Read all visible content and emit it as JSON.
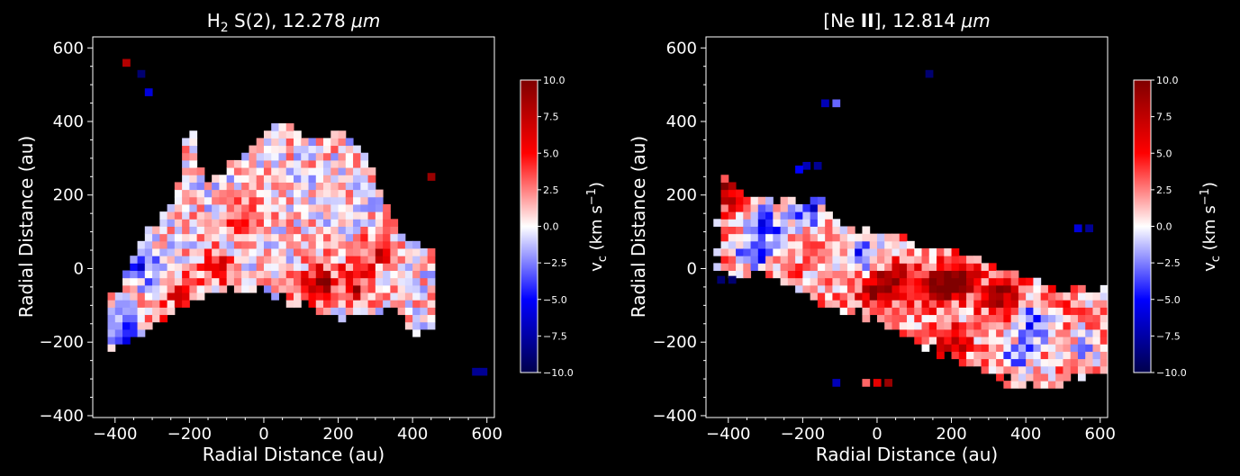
{
  "chart_data": [
    {
      "type": "heatmap",
      "title_main": "H",
      "title_sub": "2",
      "title_rest": " S(2), 12.278 ",
      "title_unit": "μm",
      "xlabel": "Radial Distance (au)",
      "ylabel": "Radial Distance (au)",
      "xlim": [
        -460,
        620
      ],
      "ylim": [
        -405,
        630
      ],
      "xticks": [
        "−400",
        "−200",
        "0",
        "200",
        "400",
        "600"
      ],
      "xtick_values": [
        -400,
        -200,
        0,
        200,
        400,
        600
      ],
      "yticks": [
        "−400",
        "−200",
        "0",
        "200",
        "400",
        "600"
      ],
      "ytick_values": [
        -400,
        -200,
        0,
        200,
        400,
        600
      ],
      "grid": false,
      "cell_size_au": 20,
      "colorbar": {
        "label": "v",
        "label_sub": "c",
        "label_rest": " (km s",
        "label_sup": "−1",
        "label_end": ")",
        "vmin": -10,
        "vmax": 10,
        "ticks": [
          "10.0",
          "7.5",
          "5.0",
          "2.5",
          "0.0",
          "−2.5",
          "−5.0",
          "−7.5",
          "−10.0"
        ],
        "tick_values": [
          10,
          7.5,
          5,
          2.5,
          0,
          -2.5,
          -5,
          -7.5,
          -10
        ],
        "colormap": "seismic"
      },
      "region_profile": [
        [
          -400,
          -460,
          -210,
          -80
        ],
        [
          -360,
          -460,
          -190,
          20
        ],
        [
          -320,
          -460,
          -170,
          100
        ],
        [
          -280,
          -460,
          -150,
          140
        ],
        [
          -240,
          -460,
          -120,
          180
        ],
        [
          -200,
          -460,
          -100,
          400
        ],
        [
          -160,
          -460,
          -80,
          240
        ],
        [
          -120,
          -440,
          -70,
          260
        ],
        [
          -80,
          -440,
          -60,
          300
        ],
        [
          -40,
          -440,
          -50,
          330
        ],
        [
          0,
          -460,
          -50,
          360
        ],
        [
          40,
          -460,
          -70,
          400
        ],
        [
          80,
          -440,
          -100,
          380
        ],
        [
          120,
          -420,
          -100,
          360
        ],
        [
          160,
          -390,
          -120,
          360
        ],
        [
          200,
          -370,
          -140,
          380
        ],
        [
          240,
          -340,
          -140,
          360
        ],
        [
          280,
          -300,
          -120,
          300
        ],
        [
          320,
          -260,
          -120,
          200
        ],
        [
          360,
          -200,
          -120,
          90
        ],
        [
          400,
          -170,
          -170,
          70
        ],
        [
          440,
          -150,
          -170,
          60
        ]
      ],
      "strong_patches": [
        {
          "x": -420,
          "y": 20,
          "v": 7
        },
        {
          "x": -340,
          "y": 0,
          "v": -7
        },
        {
          "x": -300,
          "y": -160,
          "v": 7
        },
        {
          "x": -350,
          "y": -180,
          "v": -6
        },
        {
          "x": -230,
          "y": -60,
          "v": 6
        },
        {
          "x": -120,
          "y": 0,
          "v": 6
        },
        {
          "x": -60,
          "y": 150,
          "v": 5
        },
        {
          "x": 130,
          "y": -60,
          "v": 6
        },
        {
          "x": 160,
          "y": -20,
          "v": 6
        },
        {
          "x": 250,
          "y": -50,
          "v": 6
        },
        {
          "x": 300,
          "y": 40,
          "v": 5
        },
        {
          "x": -260,
          "y": 240,
          "v": 5
        },
        {
          "x": -300,
          "y": 360,
          "v": 4
        },
        {
          "x": 200,
          "y": -240,
          "v": -5
        },
        {
          "x": 90,
          "y": -160,
          "v": -4
        },
        {
          "x": -250,
          "y": 250,
          "v": -5
        }
      ],
      "isolated_pixels": [
        {
          "x": -370,
          "y": 560,
          "v": 8
        },
        {
          "x": -330,
          "y": 530,
          "v": -9
        },
        {
          "x": -310,
          "y": 480,
          "v": -6
        },
        {
          "x": 450,
          "y": 250,
          "v": 9
        },
        {
          "x": 570,
          "y": -280,
          "v": -8
        },
        {
          "x": 590,
          "y": -280,
          "v": -8
        }
      ]
    },
    {
      "type": "heatmap",
      "title_main": "[Ne ",
      "title_bold": "II",
      "title_rest": "], 12.814 ",
      "title_unit": "μm",
      "xlabel": "Radial Distance (au)",
      "ylabel": "Radial Distance (au)",
      "xlim": [
        -460,
        620
      ],
      "ylim": [
        -405,
        630
      ],
      "xticks": [
        "−400",
        "−200",
        "0",
        "200",
        "400",
        "600"
      ],
      "xtick_values": [
        -400,
        -200,
        0,
        200,
        400,
        600
      ],
      "yticks": [
        "−400",
        "−200",
        "0",
        "200",
        "400",
        "600"
      ],
      "ytick_values": [
        -400,
        -200,
        0,
        200,
        400,
        600
      ],
      "grid": false,
      "cell_size_au": 20,
      "colorbar": {
        "label": "v",
        "label_sub": "c",
        "label_rest": " (km s",
        "label_sup": "−1",
        "label_end": ")",
        "vmin": -10,
        "vmax": 10,
        "ticks": [
          "10.0",
          "7.5",
          "5.0",
          "2.5",
          "0.0",
          "−2.5",
          "−5.0",
          "−7.5",
          "−10.0"
        ],
        "tick_values": [
          10,
          7.5,
          5,
          2.5,
          0,
          -2.5,
          -5,
          -7.5,
          -10
        ],
        "colormap": "seismic"
      },
      "region_profile": [
        [
          -440,
          -420,
          0,
          260
        ],
        [
          -400,
          -440,
          -20,
          250
        ],
        [
          -360,
          -400,
          -20,
          200
        ],
        [
          -320,
          -360,
          -20,
          200
        ],
        [
          -280,
          -320,
          -20,
          180
        ],
        [
          -240,
          -320,
          -40,
          200
        ],
        [
          -200,
          -300,
          -60,
          160
        ],
        [
          -160,
          -280,
          -80,
          200
        ],
        [
          -120,
          -250,
          -100,
          140
        ],
        [
          -80,
          -220,
          -120,
          120
        ],
        [
          -40,
          -200,
          -130,
          100
        ],
        [
          0,
          -180,
          -150,
          100
        ],
        [
          40,
          -160,
          -170,
          90
        ],
        [
          80,
          -140,
          -190,
          80
        ],
        [
          120,
          -120,
          -210,
          70
        ],
        [
          160,
          -100,
          -230,
          60
        ],
        [
          200,
          -80,
          -250,
          50
        ],
        [
          240,
          -60,
          -270,
          40
        ],
        [
          280,
          -40,
          -290,
          30
        ],
        [
          320,
          -20,
          -300,
          10
        ],
        [
          360,
          -10,
          -310,
          -10
        ],
        [
          400,
          -20,
          -320,
          -30
        ],
        [
          440,
          -20,
          -320,
          -40
        ],
        [
          480,
          -30,
          -320,
          -50
        ],
        [
          520,
          -40,
          -310,
          -50
        ],
        [
          560,
          -60,
          -290,
          -60
        ],
        [
          600,
          -80,
          -280,
          -60
        ]
      ],
      "strong_patches": [
        {
          "x": -420,
          "y": 210,
          "v": 7
        },
        {
          "x": -300,
          "y": 120,
          "v": -8
        },
        {
          "x": -330,
          "y": 50,
          "v": -7
        },
        {
          "x": -180,
          "y": 150,
          "v": -6
        },
        {
          "x": -40,
          "y": 40,
          "v": -7
        },
        {
          "x": 0,
          "y": -60,
          "v": 8
        },
        {
          "x": 60,
          "y": -30,
          "v": 7
        },
        {
          "x": 170,
          "y": -50,
          "v": 9
        },
        {
          "x": 220,
          "y": -30,
          "v": 8
        },
        {
          "x": 330,
          "y": -80,
          "v": 9
        },
        {
          "x": 500,
          "y": -20,
          "v": 7
        },
        {
          "x": 420,
          "y": -150,
          "v": -7
        },
        {
          "x": 560,
          "y": -210,
          "v": -4
        },
        {
          "x": 200,
          "y": -200,
          "v": 6
        },
        {
          "x": 380,
          "y": -240,
          "v": -6
        }
      ],
      "isolated_pixels": [
        {
          "x": 140,
          "y": 530,
          "v": -9
        },
        {
          "x": -140,
          "y": 450,
          "v": -7
        },
        {
          "x": -110,
          "y": 450,
          "v": -3
        },
        {
          "x": -190,
          "y": 280,
          "v": -7
        },
        {
          "x": -160,
          "y": 280,
          "v": -8
        },
        {
          "x": -210,
          "y": 270,
          "v": -5
        },
        {
          "x": 540,
          "y": 110,
          "v": -6
        },
        {
          "x": 570,
          "y": 110,
          "v": -8
        },
        {
          "x": -420,
          "y": -30,
          "v": -9
        },
        {
          "x": -390,
          "y": -30,
          "v": -9
        },
        {
          "x": -110,
          "y": -310,
          "v": -7
        },
        {
          "x": -30,
          "y": -310,
          "v": 3
        },
        {
          "x": 0,
          "y": -310,
          "v": 6
        },
        {
          "x": 30,
          "y": -310,
          "v": 9
        }
      ]
    }
  ]
}
